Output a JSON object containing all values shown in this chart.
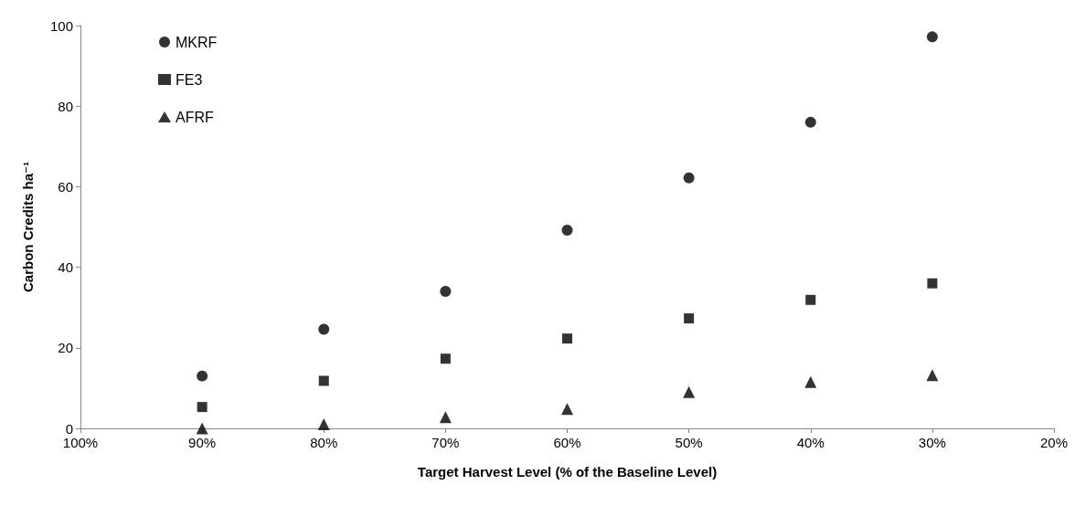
{
  "chart_data": {
    "type": "scatter",
    "xlabel": "Target Harvest Level (% of the Baseline Level)",
    "ylabel": "Carbon Credits ha⁻¹",
    "x": [
      90,
      80,
      70,
      60,
      50,
      40,
      30
    ],
    "series": [
      {
        "name": "MKRF",
        "color": "#000000",
        "marker": "circle",
        "values": [
          13,
          24.6,
          34,
          49.2,
          62.2,
          76,
          97.2
        ]
      },
      {
        "name": "FE3",
        "color": "#000000",
        "marker": "square",
        "values": [
          5.3,
          11.8,
          17.3,
          22.3,
          27.3,
          31.9,
          36
        ]
      },
      {
        "name": "AFRF",
        "color": "#000000",
        "marker": "triangle",
        "values": [
          0,
          1,
          2.8,
          4.8,
          9,
          11.5,
          13.2
        ]
      }
    ],
    "xlim": [
      100,
      20
    ],
    "xticks": [
      {
        "value": 100,
        "label": "100%"
      },
      {
        "value": 90,
        "label": "90%"
      },
      {
        "value": 80,
        "label": "80%"
      },
      {
        "value": 70,
        "label": "70%"
      },
      {
        "value": 60,
        "label": "60%"
      },
      {
        "value": 50,
        "label": "50%"
      },
      {
        "value": 40,
        "label": "40%"
      },
      {
        "value": 30,
        "label": "30%"
      },
      {
        "value": 20,
        "label": "20%"
      }
    ],
    "ylim": [
      0,
      100
    ],
    "yticks": [
      0,
      20,
      40,
      60,
      80,
      100
    ],
    "grid": false,
    "legend": "top left"
  }
}
